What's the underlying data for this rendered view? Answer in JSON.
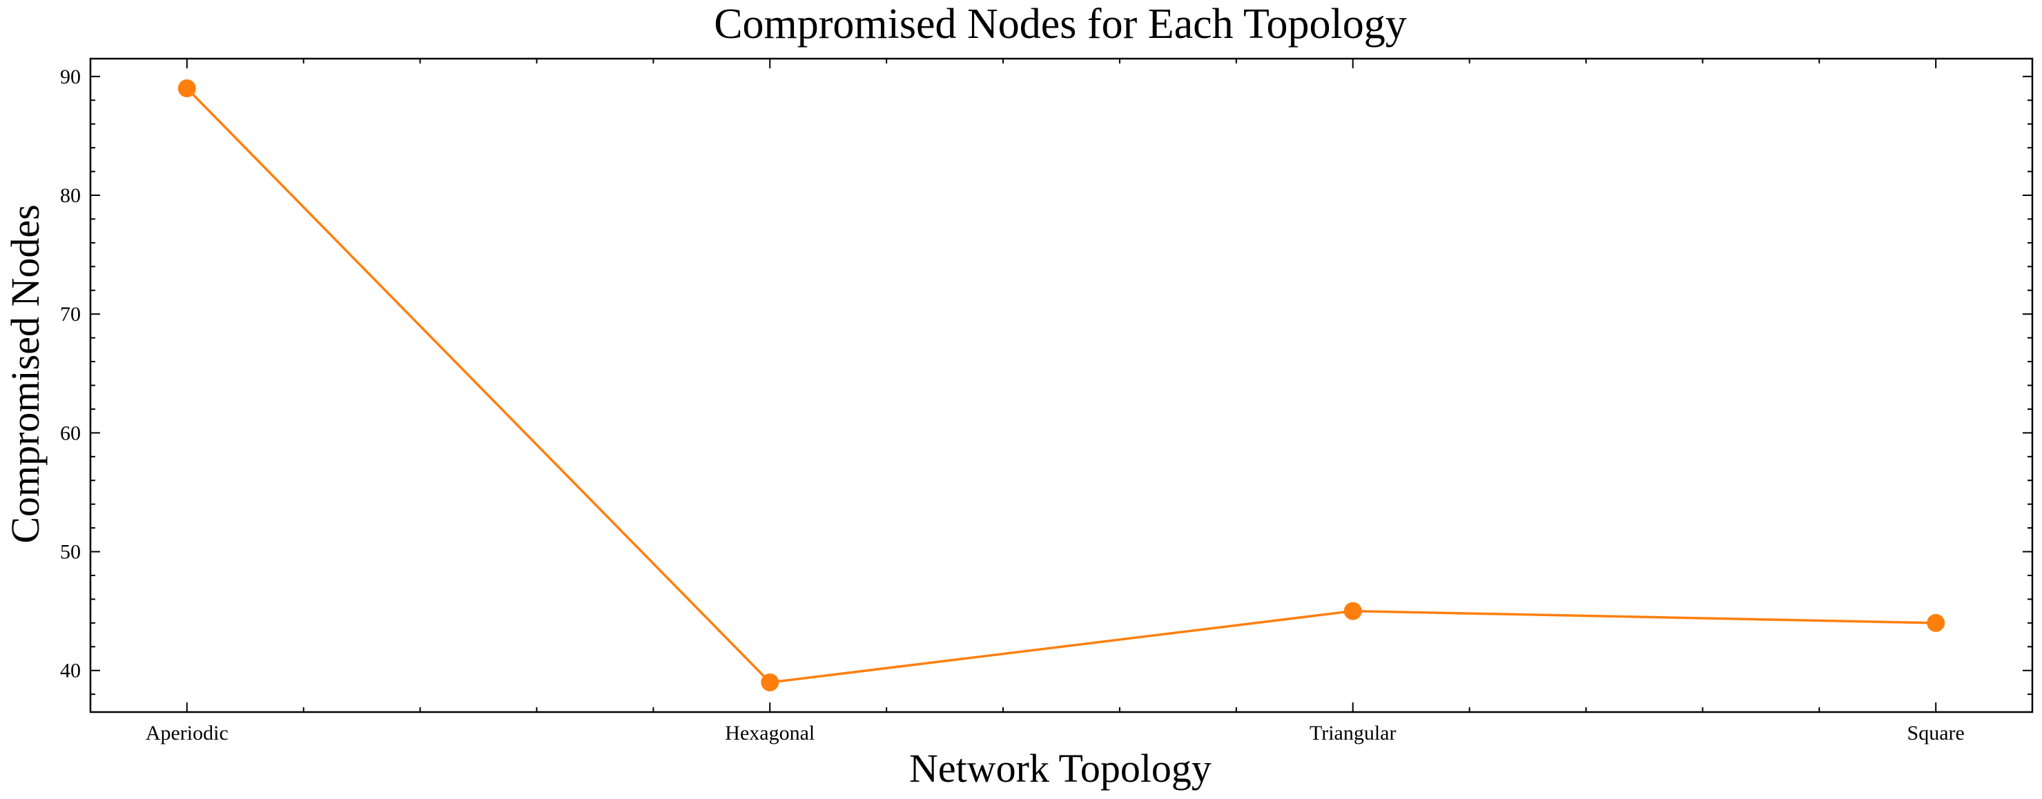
{
  "chart_data": {
    "type": "line",
    "title": "Compromised Nodes for Each Topology",
    "xlabel": "Network Topology",
    "ylabel": "Compromised Nodes",
    "categories": [
      "Aperiodic",
      "Hexagonal",
      "Triangular",
      "Square"
    ],
    "series": [
      {
        "values": [
          89,
          39,
          45,
          44
        ],
        "color": "#ff7f0e",
        "marker": "circle"
      }
    ],
    "ylim": [
      36.5,
      91.5
    ],
    "yticks": [
      40,
      50,
      60,
      70,
      80,
      90
    ],
    "grid": false,
    "legend": "none"
  }
}
